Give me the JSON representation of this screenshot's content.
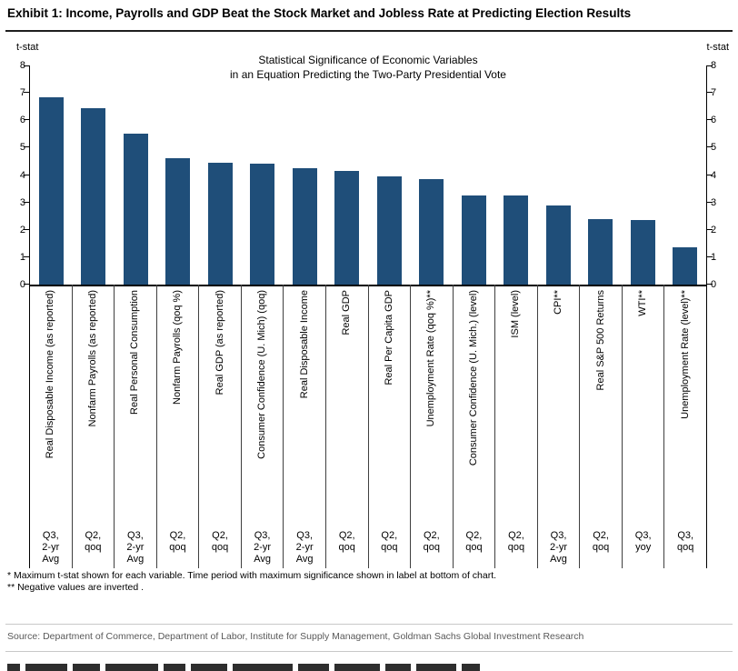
{
  "header": {
    "title": "Exhibit 1: Income, Payrolls and GDP Beat the Stock Market and Jobless Rate at Predicting Election Results"
  },
  "chart_data": {
    "type": "bar",
    "title": "Statistical Significance of Economic Variables in an Equation Predicting the Two-Party Presidential Vote",
    "title_lines": [
      "Statistical Significance of Economic Variables",
      "in an Equation Predicting the Two-Party Presidential Vote"
    ],
    "ylabel": "t-stat",
    "ylim": [
      0,
      8
    ],
    "yticks": [
      0,
      1,
      2,
      3,
      4,
      5,
      6,
      7,
      8
    ],
    "grid": false,
    "bar_color": "#1f4e79",
    "categories": [
      "Real Disposable Income (as reported)",
      "Nonfarm Payrolls (as reported)",
      "Real Personal Consumption",
      "Nonfarm Payrolls (qoq %)",
      "Real GDP (as reported)",
      "Consumer Confidence (U. Mich) (qoq)",
      "Real Disposable Income",
      "Real GDP",
      "Real Per Capita GDP",
      "Unemployment Rate (qoq %)**",
      "Consumer Confidence (U. Mich.) (level)",
      "ISM (level)",
      "CPI**",
      "Real S&P 500 Returns",
      "WTI**",
      "Unemployment Rate (level)**"
    ],
    "periods": [
      "Q3,\n2-yr\nAvg",
      "Q2,\nqoq",
      "Q3,\n2-yr\nAvg",
      "Q2,\nqoq",
      "Q2,\nqoq",
      "Q3,\n2-yr\nAvg",
      "Q3,\n2-yr\nAvg",
      "Q2,\nqoq",
      "Q2,\nqoq",
      "Q2,\nqoq",
      "Q2,\nqoq",
      "Q2,\nqoq",
      "Q3,\n2-yr\nAvg",
      "Q2,\nqoq",
      "Q3,\nyoy",
      "Q3,\nqoq"
    ],
    "values": [
      6.85,
      6.45,
      5.5,
      4.6,
      4.45,
      4.4,
      4.25,
      4.15,
      3.95,
      3.85,
      3.25,
      3.25,
      2.9,
      2.4,
      2.35,
      1.35
    ]
  },
  "footnotes": {
    "line1": "* Maximum t-stat shown for each variable.  Time period with maximum significance shown in label at bottom of chart.",
    "line2": "** Negative values are inverted ."
  },
  "source": {
    "text": "Source: Department of Commerce, Department of Labor, Institute for Supply Management, Goldman Sachs Global Investment Research"
  }
}
